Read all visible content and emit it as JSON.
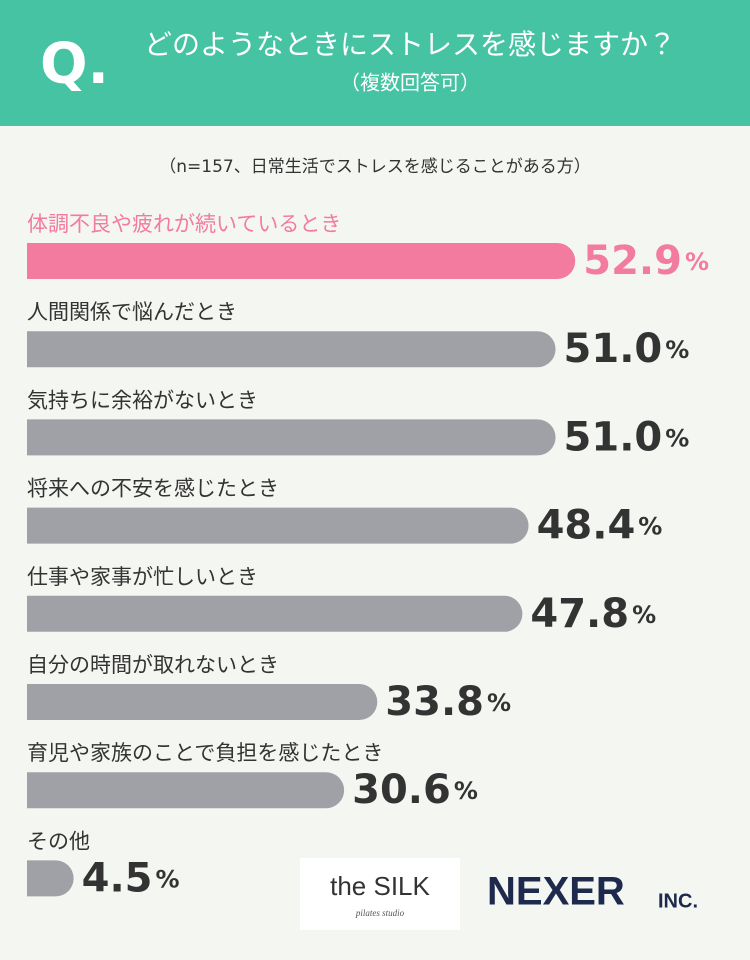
{
  "chart_data": {
    "type": "hbar",
    "question_mark": "Q.",
    "title": "どのようなときにストレスを感じますか？",
    "subtitle": "（複数回答可）",
    "note": "（n=157、日常生活でストレスを感じることがある方）",
    "categories": [
      "体調不良や疲れが続いているとき",
      "人間関係で悩んだとき",
      "気持ちに余裕がないとき",
      "将来への不安を感じたとき",
      "仕事や家事が忙しいとき",
      "自分の時間が取れないとき",
      "育児や家族のことで負担を感じたとき",
      "その他"
    ],
    "values": [
      52.9,
      51.0,
      51.0,
      48.4,
      47.8,
      33.8,
      30.6,
      4.5
    ],
    "value_labels": [
      "52.9",
      "51.0",
      "51.0",
      "48.4",
      "47.8",
      "33.8",
      "30.6",
      "4.5"
    ],
    "value_unit": "%",
    "colors": [
      "#f27b9f",
      "#a0a1a6",
      "#a0a1a6",
      "#a0a1a6",
      "#a0a1a6",
      "#a0a1a6",
      "#a0a1a6",
      "#a0a1a6"
    ],
    "xlim": [
      0,
      55
    ],
    "logos": {
      "silk": "the SILK",
      "silk_sub": "pilates studio",
      "nexer": "NEXER",
      "nexer_suffix": "INC."
    }
  }
}
